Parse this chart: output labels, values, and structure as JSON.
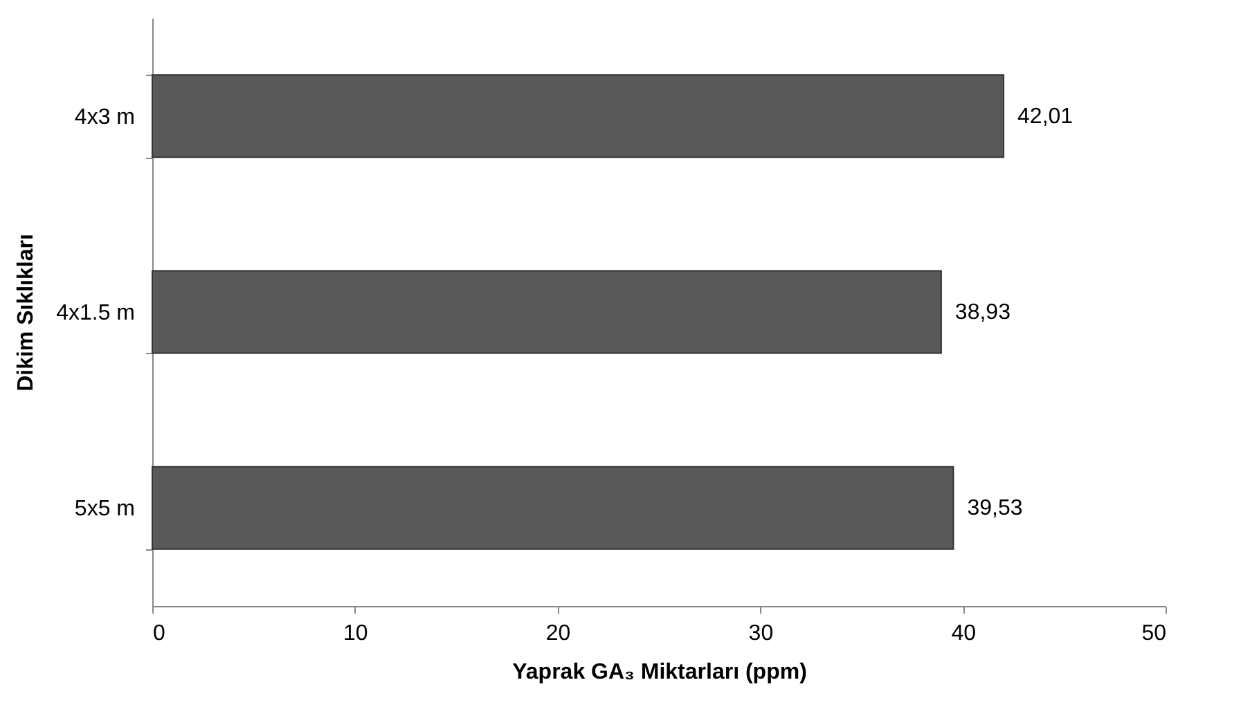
{
  "chart_data": {
    "type": "bar",
    "orientation": "horizontal",
    "xlabel": "Yaprak GA₃ Miktarları (ppm)",
    "ylabel": "Dikim Sıklıkları",
    "categories": [
      "4x3 m",
      "4x1.5 m",
      "5x5 m"
    ],
    "values": [
      42.01,
      38.93,
      39.53
    ],
    "value_labels": [
      "42,01",
      "38,93",
      "39,53"
    ],
    "color": "#595959",
    "xlim": [
      0,
      50
    ],
    "xticks": [
      0,
      10,
      20,
      30,
      40,
      50
    ],
    "grid": false
  }
}
